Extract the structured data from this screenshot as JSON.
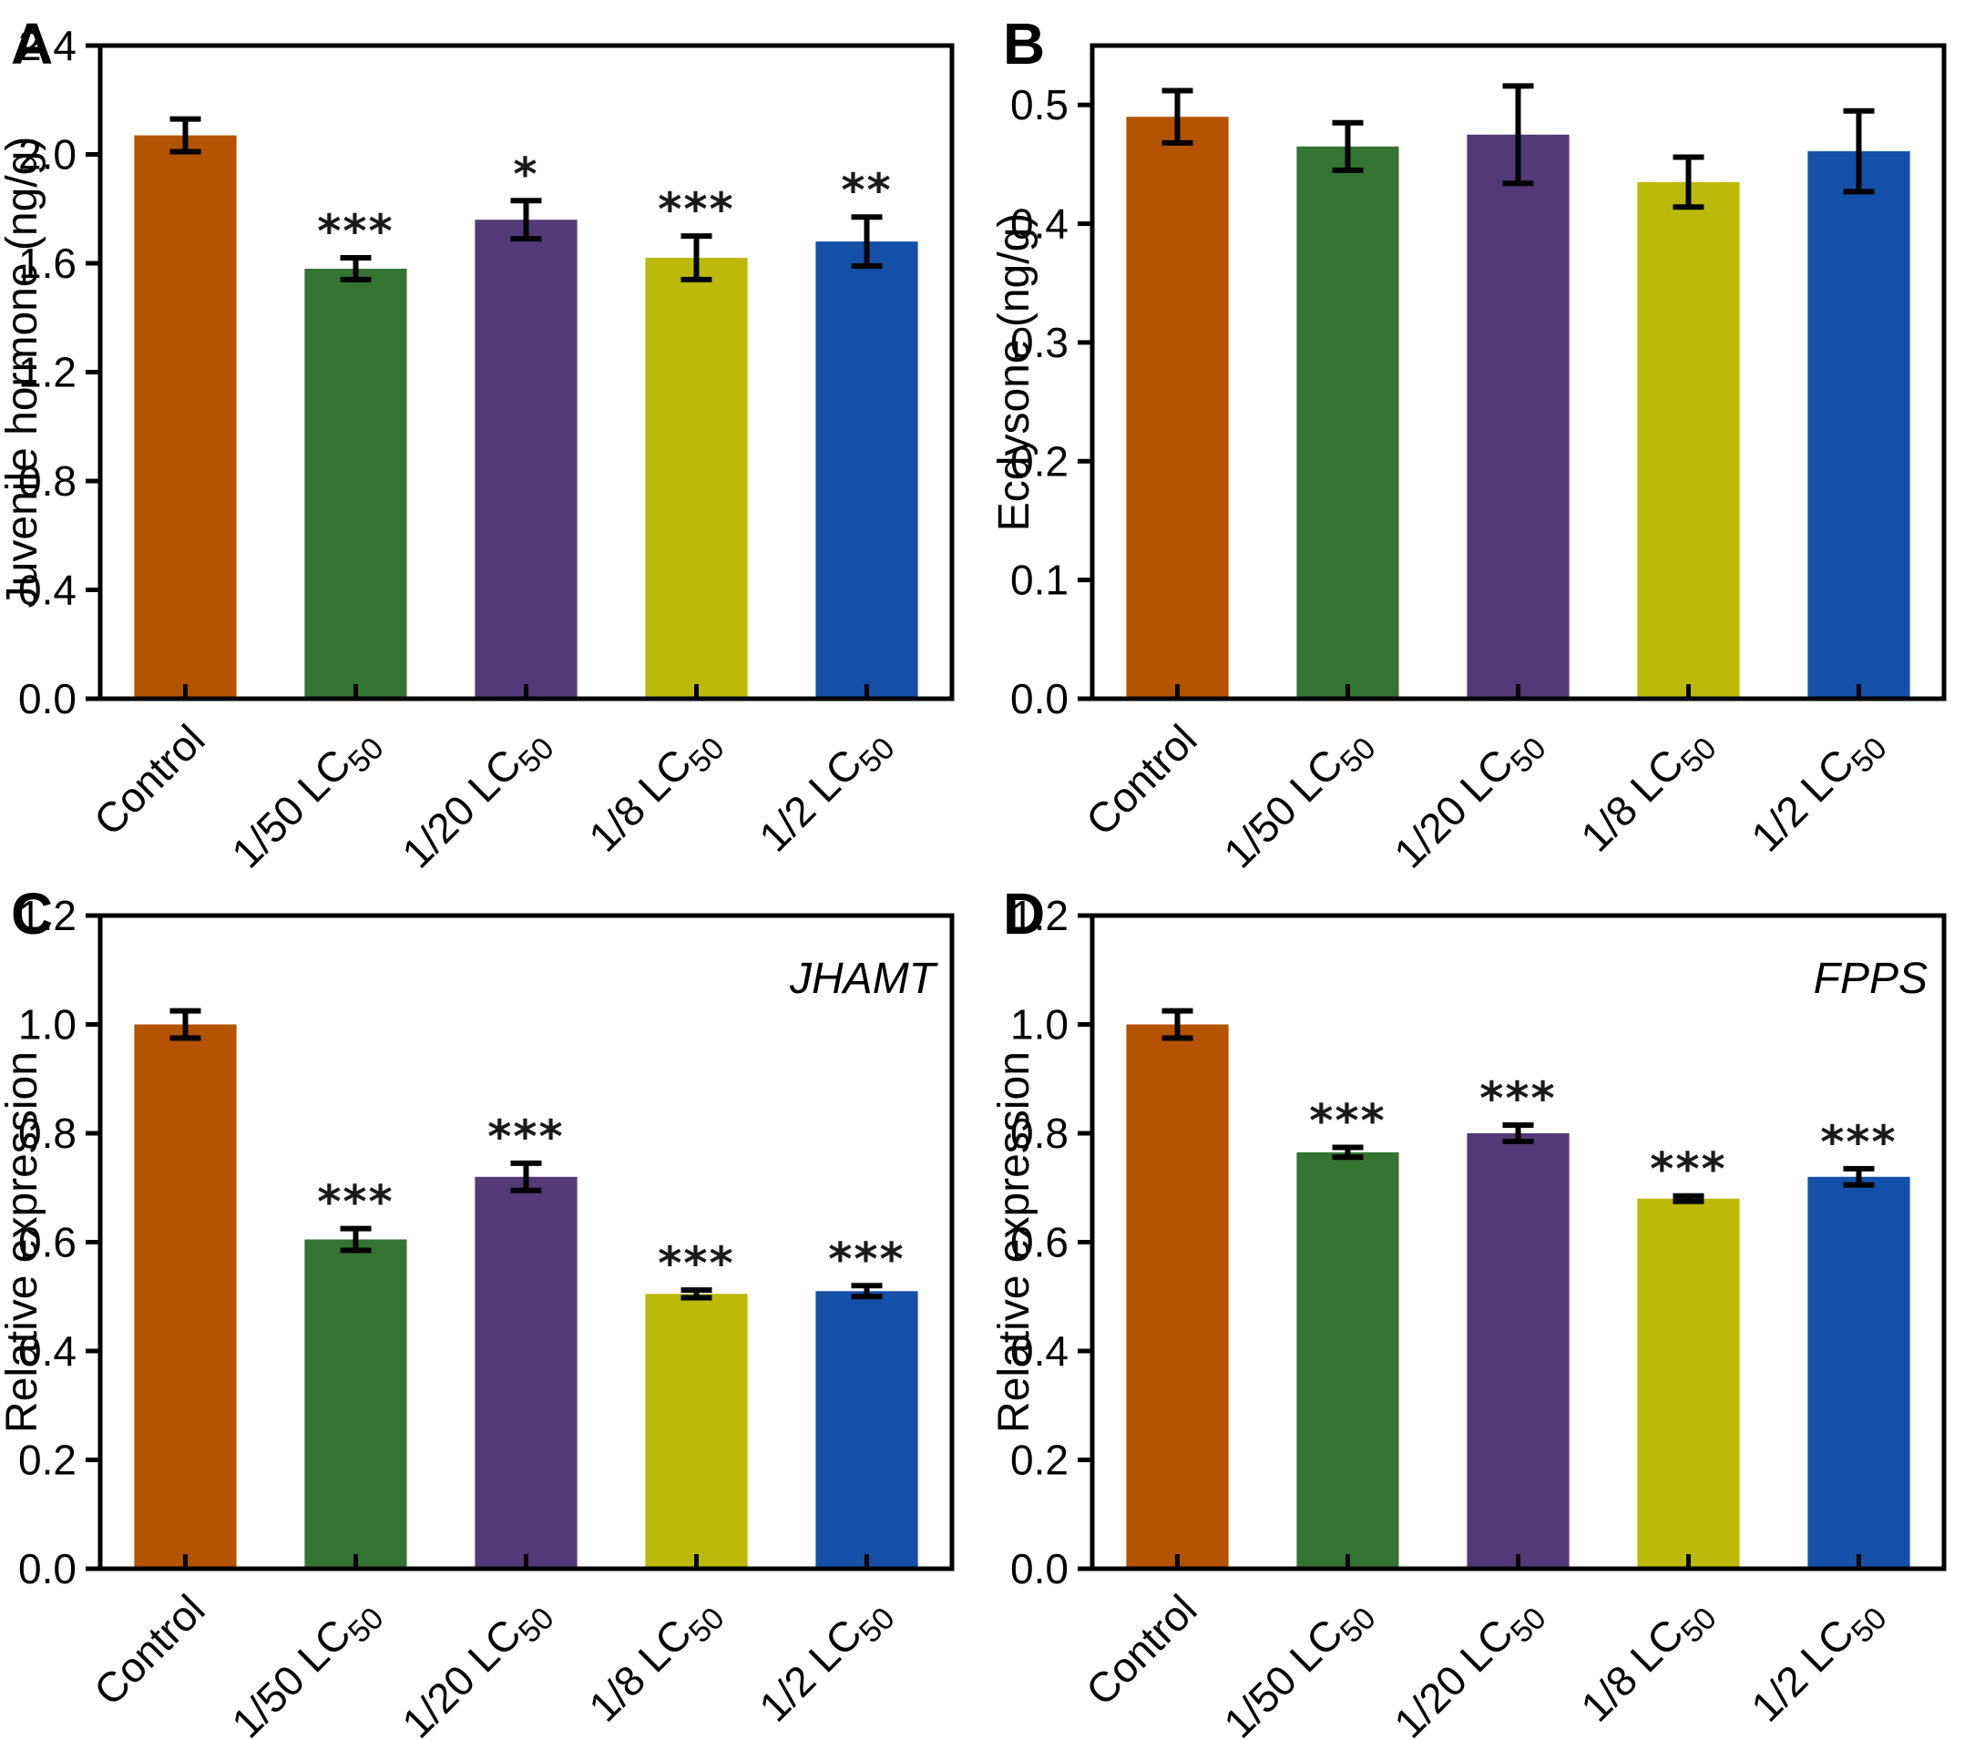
{
  "figure": {
    "background": "#ffffff",
    "axis_color": "#000000",
    "bar_colors": [
      "#b45300",
      "#347433",
      "#523a78",
      "#bdb90a",
      "#1450a8"
    ],
    "categories": [
      {
        "base": "Control",
        "sub": ""
      },
      {
        "base": "1/50 LC",
        "sub": "50"
      },
      {
        "base": "1/20 LC",
        "sub": "50"
      },
      {
        "base": "1/8 LC",
        "sub": "50"
      },
      {
        "base": "1/2 LC",
        "sub": "50"
      }
    ],
    "x_tick_rotation": -45
  },
  "chart_data": [
    {
      "type": "bar",
      "panel_label": "A",
      "ylabel": "Juvenile hormone (ng/g)",
      "annotation": "",
      "categories": [
        "Control",
        "1/50 LC50",
        "1/20 LC50",
        "1/8 LC50",
        "1/2 LC50"
      ],
      "values": [
        2.07,
        1.58,
        1.76,
        1.62,
        1.68
      ],
      "errors": [
        0.06,
        0.04,
        0.07,
        0.08,
        0.09
      ],
      "significance": [
        "",
        "***",
        "*",
        "***",
        "**"
      ],
      "ylim": [
        0,
        2.4
      ],
      "ymax_display": 2.4,
      "yticks": [
        "0.0",
        "0.4",
        "0.8",
        "1.2",
        "1.6",
        "2.0",
        "2.4"
      ],
      "grid": false,
      "legend": "none"
    },
    {
      "type": "bar",
      "panel_label": "B",
      "ylabel": "Ecdysone (ng/g)",
      "annotation": "",
      "categories": [
        "Control",
        "1/50 LC50",
        "1/20 LC50",
        "1/8 LC50",
        "1/2 LC50"
      ],
      "values": [
        0.49,
        0.465,
        0.475,
        0.435,
        0.461
      ],
      "errors": [
        0.022,
        0.02,
        0.041,
        0.021,
        0.034
      ],
      "significance": [
        "",
        "",
        "",
        "",
        ""
      ],
      "ylim": [
        0,
        0.55
      ],
      "ymax_display": 0.55,
      "yticks": [
        "0.0",
        "0.1",
        "0.2",
        "0.3",
        "0.4",
        "0.5"
      ],
      "grid": false,
      "legend": "none"
    },
    {
      "type": "bar",
      "panel_label": "C",
      "ylabel": "Relative expression",
      "annotation": "JHAMT",
      "categories": [
        "Control",
        "1/50 LC50",
        "1/20 LC50",
        "1/8 LC50",
        "1/2 LC50"
      ],
      "values": [
        1.0,
        0.605,
        0.72,
        0.505,
        0.51
      ],
      "errors": [
        0.025,
        0.02,
        0.025,
        0.007,
        0.01
      ],
      "significance": [
        "",
        "***",
        "***",
        "***",
        "***"
      ],
      "ylim": [
        0,
        1.2
      ],
      "ymax_display": 1.2,
      "yticks": [
        "0.0",
        "0.2",
        "0.4",
        "0.6",
        "0.8",
        "1.0",
        "1.2"
      ],
      "grid": false,
      "legend": "none"
    },
    {
      "type": "bar",
      "panel_label": "D",
      "ylabel": "Relative expression",
      "annotation": "FPPS",
      "categories": [
        "Control",
        "1/50 LC50",
        "1/20 LC50",
        "1/8 LC50",
        "1/2 LC50"
      ],
      "values": [
        1.0,
        0.765,
        0.8,
        0.68,
        0.72
      ],
      "errors": [
        0.025,
        0.009,
        0.015,
        0.005,
        0.015
      ],
      "significance": [
        "",
        "***",
        "***",
        "***",
        "***"
      ],
      "ylim": [
        0,
        1.2
      ],
      "ymax_display": 1.2,
      "yticks": [
        "0.0",
        "0.2",
        "0.4",
        "0.6",
        "0.8",
        "1.0",
        "1.2"
      ],
      "grid": false,
      "legend": "none"
    }
  ]
}
